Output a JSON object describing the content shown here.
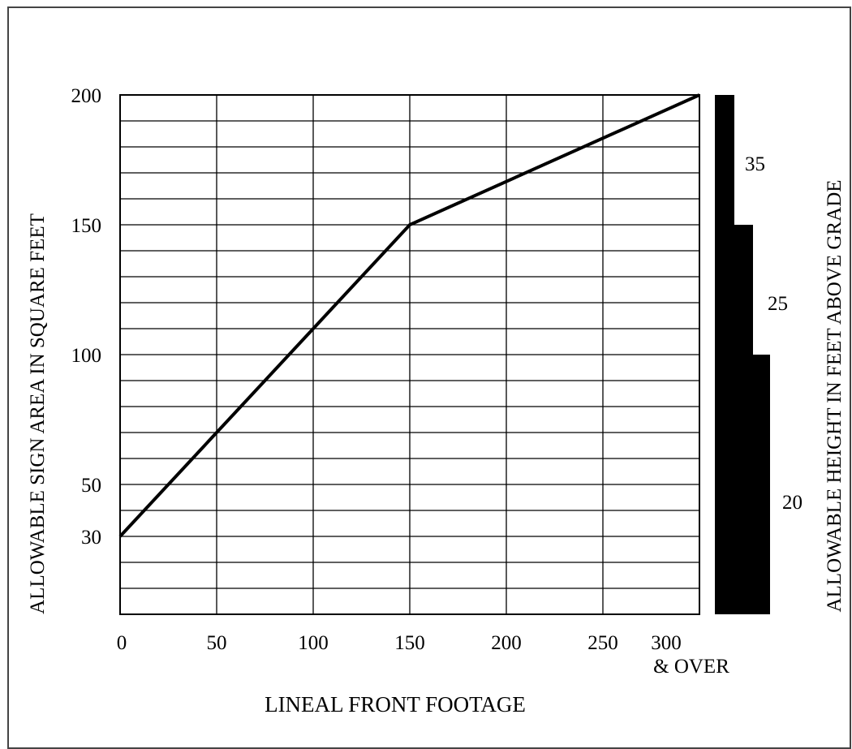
{
  "chart_data": {
    "type": "line",
    "xlabel": "LINEAL FRONT FOOTAGE",
    "ylabel": "ALLOWABLE SIGN AREA IN SQUARE FEET",
    "y2label": "ALLOWABLE HEIGHT IN FEET ABOVE GRADE",
    "xlim": [
      0,
      300
    ],
    "ylim": [
      0,
      200
    ],
    "x_ticks": [
      "0",
      "50",
      "100",
      "150",
      "200",
      "250",
      "300"
    ],
    "x_tick_last_suffix": "& OVER",
    "y_ticks": [
      "30",
      "50",
      "100",
      "150",
      "200"
    ],
    "y_tick_values": [
      30,
      50,
      100,
      150,
      200
    ],
    "grid": true,
    "series": [
      {
        "x": [
          0,
          150,
          300
        ],
        "y": [
          30,
          150,
          200
        ]
      }
    ],
    "height_bars": [
      {
        "label": "35",
        "value": 200
      },
      {
        "label": "25",
        "value": 150
      },
      {
        "label": "20",
        "value": 100
      }
    ]
  }
}
